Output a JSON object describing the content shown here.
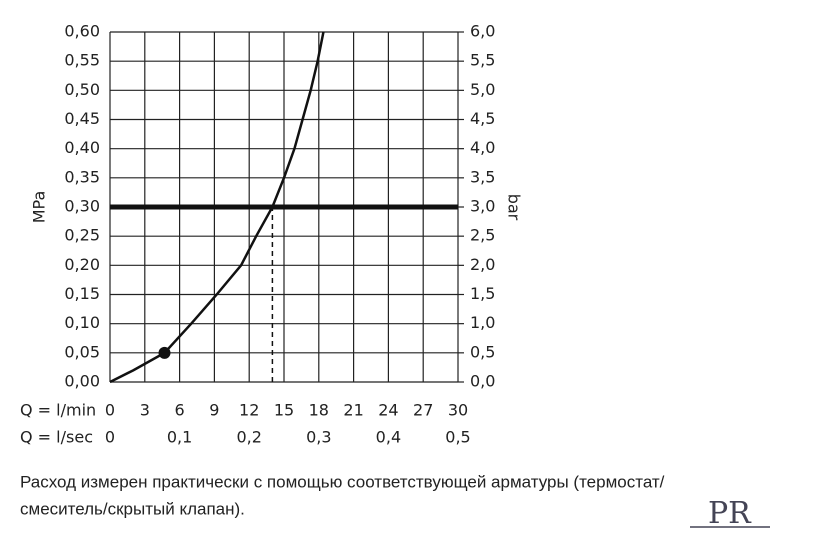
{
  "chart_data": {
    "type": "line",
    "ylabel": "MPa",
    "y2label": "bar",
    "xlabel": "Q = l/min",
    "x2label": "Q = l/sec",
    "x": [
      0,
      2,
      4.7,
      7,
      9.2,
      11.3,
      12.6,
      14,
      15,
      15.9,
      16.6,
      17.3,
      17.9,
      18.4
    ],
    "series": [
      {
        "color": "#111111",
        "values": [
          0,
          0.02,
          0.05,
          0.1,
          0.15,
          0.2,
          0.25,
          0.3,
          0.35,
          0.4,
          0.45,
          0.5,
          0.55,
          0.6
        ]
      }
    ],
    "xlim": [
      0,
      30
    ],
    "xticks": [
      0,
      3,
      6,
      9,
      12,
      15,
      18,
      21,
      24,
      27,
      30
    ],
    "x2lim": [
      0,
      0.5
    ],
    "x2ticks": [
      0,
      {
        "value": 0.1,
        "label": "0,1"
      },
      {
        "value": 0.2,
        "label": "0,2"
      },
      {
        "value": 0.3,
        "label": "0,3"
      },
      {
        "value": 0.4,
        "label": "0,4"
      },
      {
        "value": 0.5,
        "label": "0,5"
      }
    ],
    "ylim": [
      0,
      0.6
    ],
    "yticks": [
      {
        "value": 0,
        "label": "0,00"
      },
      {
        "value": 0.05,
        "label": "0,05"
      },
      {
        "value": 0.1,
        "label": "0,10"
      },
      {
        "value": 0.15,
        "label": "0,15"
      },
      {
        "value": 0.2,
        "label": "0,20"
      },
      {
        "value": 0.25,
        "label": "0,25"
      },
      {
        "value": 0.3,
        "label": "0,30"
      },
      {
        "value": 0.35,
        "label": "0,35"
      },
      {
        "value": 0.4,
        "label": "0,40"
      },
      {
        "value": 0.45,
        "label": "0,45"
      },
      {
        "value": 0.5,
        "label": "0,50"
      },
      {
        "value": 0.55,
        "label": "0,55"
      },
      {
        "value": 0.6,
        "label": "0,60"
      }
    ],
    "y2lim": [
      0,
      6
    ],
    "y2ticks": [
      {
        "value": 0,
        "label": "0,0"
      },
      {
        "value": 0.5,
        "label": "0,5"
      },
      {
        "value": 1,
        "label": "1,0"
      },
      {
        "value": 1.5,
        "label": "1,5"
      },
      {
        "value": 2,
        "label": "2,0"
      },
      {
        "value": 2.5,
        "label": "2,5"
      },
      {
        "value": 3,
        "label": "3,0"
      },
      {
        "value": 3.5,
        "label": "3,5"
      },
      {
        "value": 4,
        "label": "4,0"
      },
      {
        "value": 4.5,
        "label": "4,5"
      },
      {
        "value": 5,
        "label": "5,0"
      },
      {
        "value": 5.5,
        "label": "5,5"
      },
      {
        "value": 6,
        "label": "6,0"
      }
    ],
    "grid": true,
    "hlines": [
      {
        "value": 0.3
      }
    ],
    "vlines": [
      {
        "value": 14,
        "from": 0,
        "to": 0.3
      }
    ],
    "markers": [
      {
        "x": 4.7,
        "y": 0.05
      }
    ]
  },
  "note": [
    "Расход измерен практически с помощью соответствующей арматуры (термостат/",
    "смеситель/скрытый клапан)."
  ],
  "logo": "PR"
}
